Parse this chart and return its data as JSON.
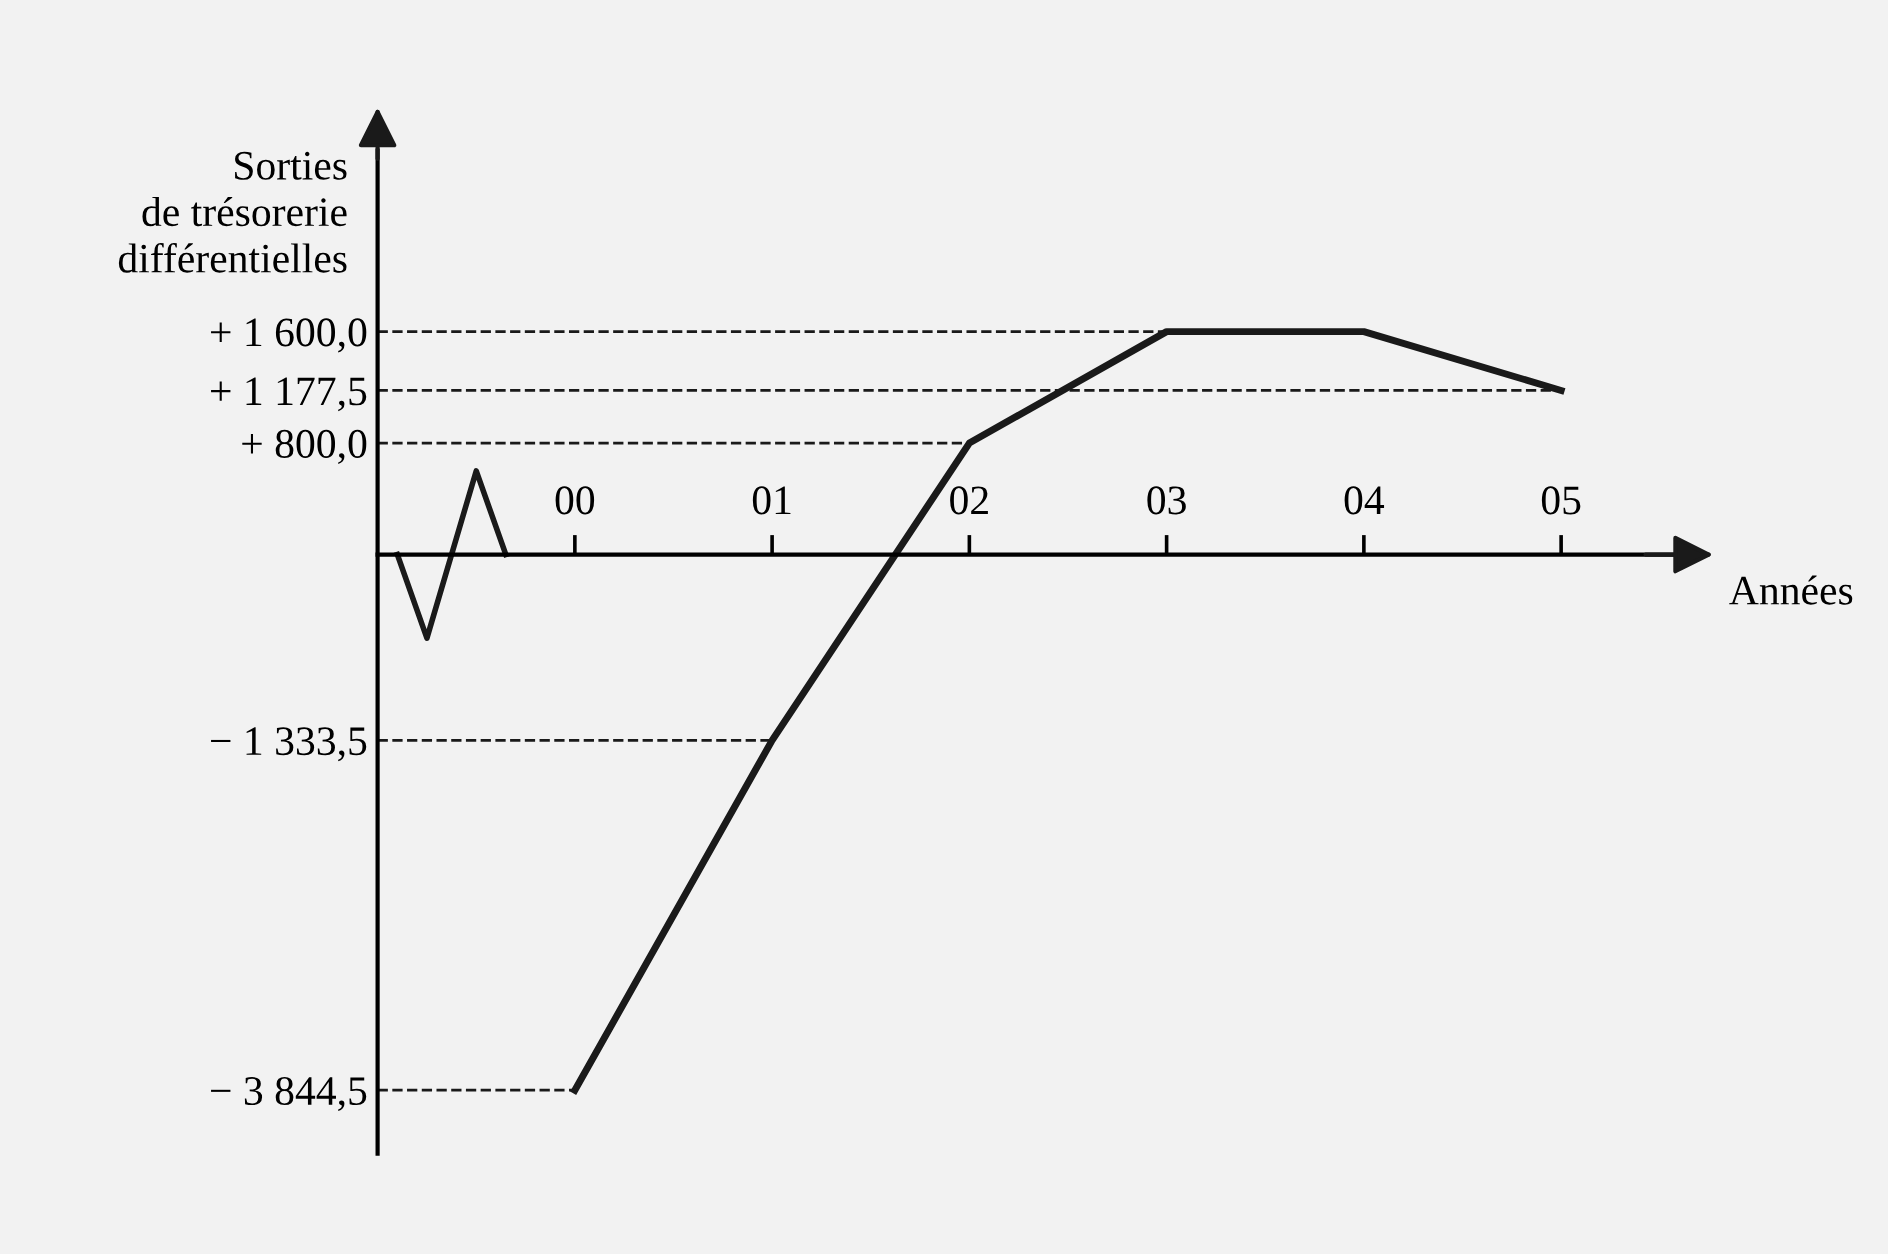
{
  "chart_data": {
    "type": "line",
    "ylabel": "Sorties\nde trésorerie\ndifférentielles",
    "xlabel": "Années",
    "categories": [
      "00",
      "01",
      "02",
      "03",
      "04",
      "05"
    ],
    "series": [
      {
        "color": "#1a1a1a",
        "values": [
          -3844.5,
          -1333.5,
          800.0,
          1600.0,
          1600.0,
          1177.5
        ]
      }
    ],
    "ylim": [
      -4300,
      2900
    ],
    "yticks": [
      {
        "value": 1600,
        "label": "+ 1 600,0"
      },
      {
        "value": 1177.5,
        "label": "+ 1 177,5"
      },
      {
        "value": 800,
        "label": "+ 800,0"
      },
      {
        "value": -1333.5,
        "label": "− 1 333,5"
      },
      {
        "value": -3844.5,
        "label": "− 3 844,5"
      }
    ],
    "ref_lines": [
      {
        "axis": "y",
        "value": 1600,
        "line_style": "dashed"
      },
      {
        "axis": "y",
        "value": 1177.5,
        "line_style": "dashed"
      },
      {
        "axis": "y",
        "value": 800,
        "line_style": "dashed"
      },
      {
        "axis": "y",
        "value": -1333.5,
        "line_style": "dashed"
      },
      {
        "axis": "y",
        "value": -3844.5,
        "line_style": "dashed"
      }
    ],
    "grid": false,
    "marker": "none",
    "line_style": "solid"
  }
}
